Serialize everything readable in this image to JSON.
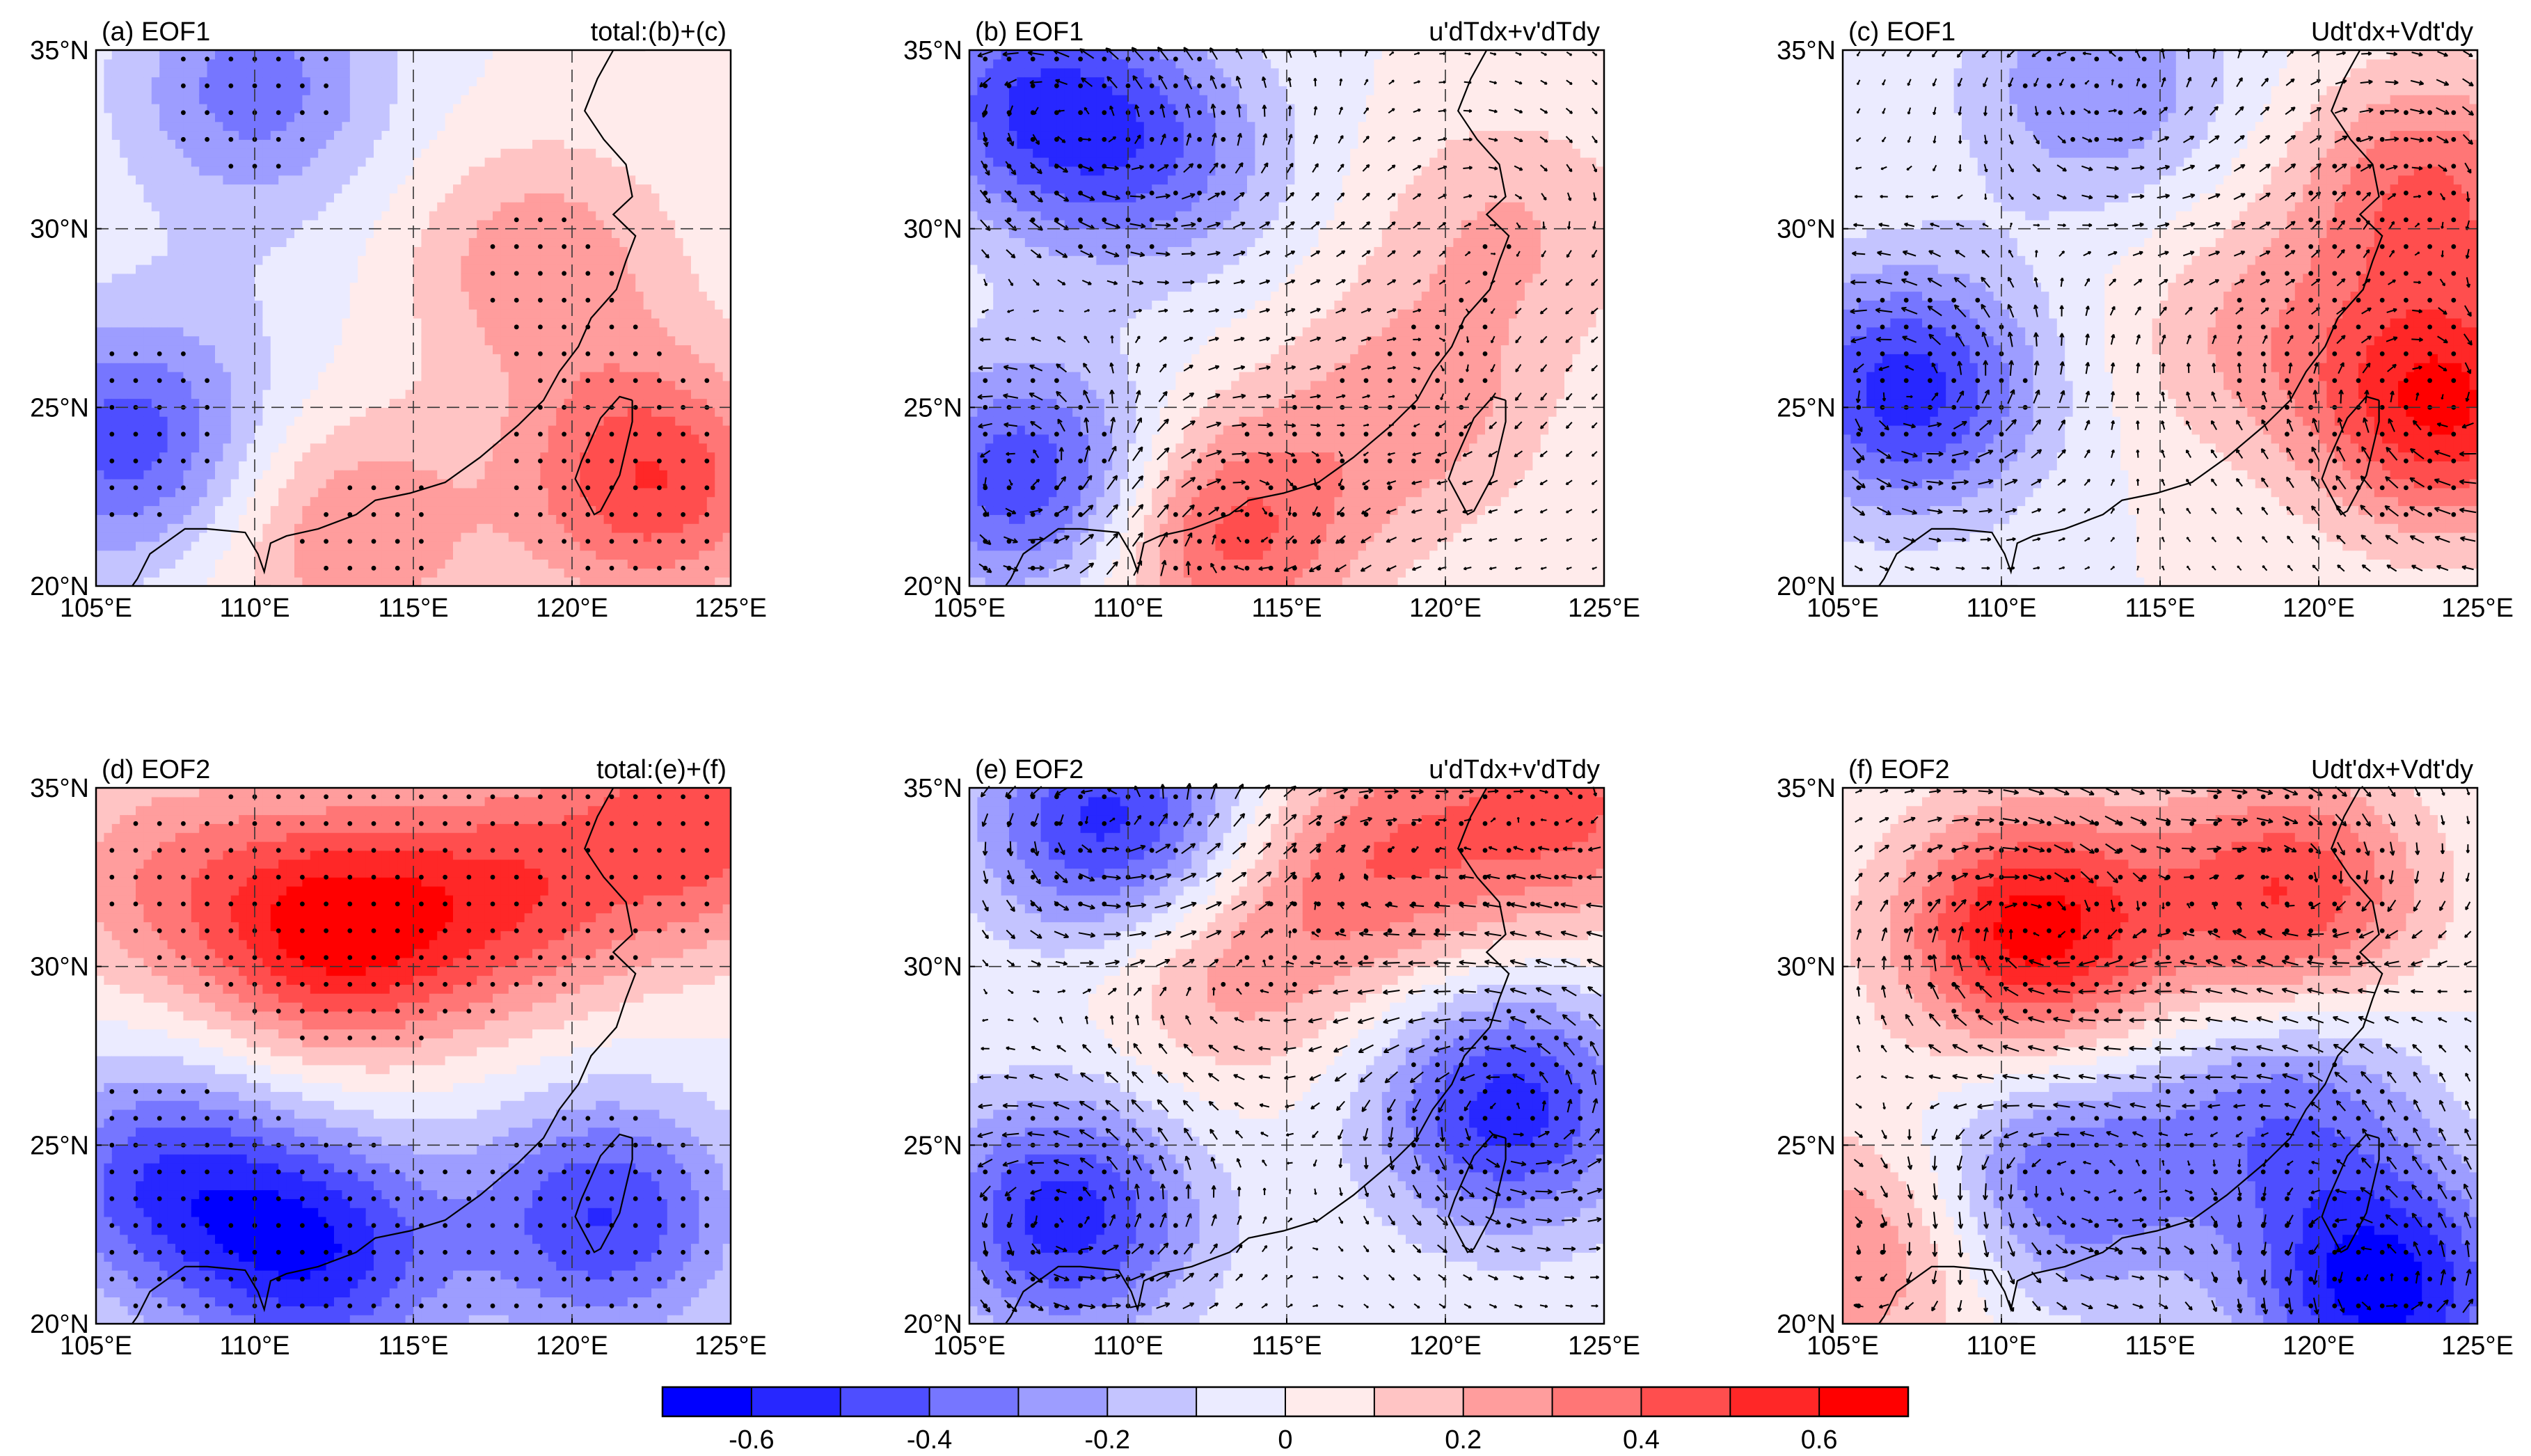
{
  "chart_data": [
    {
      "id": "a",
      "type": "heatmap",
      "label": "(a) EOF1",
      "title": "(a) EOF1",
      "subtitle": "total:(b)+(c)",
      "mode": "EOF1",
      "term": "total",
      "vectors": false,
      "stippling": true,
      "xlim": [
        105,
        125
      ],
      "ylim": [
        20,
        35
      ],
      "xticks": [
        105,
        110,
        115,
        120,
        125
      ],
      "yticks": [
        20,
        25,
        30,
        35
      ],
      "field_centers": [
        {
          "lon": 106,
          "lat": 24,
          "value": -0.45
        },
        {
          "lon": 110,
          "lat": 34,
          "value": -0.35
        },
        {
          "lon": 122.5,
          "lat": 23,
          "value": 0.5
        },
        {
          "lon": 119,
          "lat": 29,
          "value": 0.28
        },
        {
          "lon": 113,
          "lat": 21.5,
          "value": 0.3
        },
        {
          "lon": 109.5,
          "lat": 28,
          "value": -0.05
        }
      ]
    },
    {
      "id": "b",
      "type": "heatmap",
      "label": "(b) EOF1",
      "title": "(b) EOF1",
      "subtitle": "u'dTdx+v'dTdy",
      "mode": "EOF1",
      "term": "u'dTdx+v'dTdy",
      "vectors": true,
      "stippling": true,
      "xlim": [
        105,
        125
      ],
      "ylim": [
        20,
        35
      ],
      "xticks": [
        105,
        110,
        115,
        120,
        125
      ],
      "yticks": [
        20,
        25,
        30,
        35
      ],
      "field_centers": [
        {
          "lon": 107,
          "lat": 23,
          "value": -0.5
        },
        {
          "lon": 107,
          "lat": 33.5,
          "value": -0.45
        },
        {
          "lon": 111,
          "lat": 32,
          "value": -0.3
        },
        {
          "lon": 113,
          "lat": 21.5,
          "value": 0.45
        },
        {
          "lon": 119,
          "lat": 25,
          "value": 0.25
        },
        {
          "lon": 122,
          "lat": 30,
          "value": 0.2
        }
      ]
    },
    {
      "id": "c",
      "type": "heatmap",
      "label": "(c) EOF1",
      "title": "(c) EOF1",
      "subtitle": "Udt'dx+Vdt'dy",
      "mode": "EOF1",
      "term": "Udt'dx+Vdt'dy",
      "vectors": true,
      "stippling": true,
      "xlim": [
        105,
        125
      ],
      "ylim": [
        20,
        35
      ],
      "xticks": [
        105,
        110,
        115,
        120,
        125
      ],
      "yticks": [
        20,
        25,
        30,
        35
      ],
      "field_centers": [
        {
          "lon": 107,
          "lat": 25.5,
          "value": -0.55
        },
        {
          "lon": 113,
          "lat": 34,
          "value": -0.3
        },
        {
          "lon": 124,
          "lat": 25,
          "value": 0.6
        },
        {
          "lon": 123.5,
          "lat": 31,
          "value": 0.4
        },
        {
          "lon": 118,
          "lat": 27,
          "value": 0.2
        }
      ]
    },
    {
      "id": "d",
      "type": "heatmap",
      "label": "(d) EOF2",
      "title": "(d) EOF2",
      "subtitle": "total:(e)+(f)",
      "mode": "EOF2",
      "term": "total",
      "vectors": false,
      "stippling": true,
      "xlim": [
        105,
        125
      ],
      "ylim": [
        20,
        35
      ],
      "xticks": [
        105,
        110,
        115,
        120,
        125
      ],
      "yticks": [
        20,
        25,
        30,
        35
      ],
      "field_centers": [
        {
          "lon": 112.5,
          "lat": 31,
          "value": 0.6
        },
        {
          "lon": 124,
          "lat": 34,
          "value": 0.45
        },
        {
          "lon": 118,
          "lat": 32,
          "value": 0.4
        },
        {
          "lon": 107,
          "lat": 32.5,
          "value": 0.25
        },
        {
          "lon": 112,
          "lat": 22,
          "value": -0.55
        },
        {
          "lon": 121,
          "lat": 23,
          "value": -0.5
        },
        {
          "lon": 107,
          "lat": 24,
          "value": -0.45
        }
      ]
    },
    {
      "id": "e",
      "type": "heatmap",
      "label": "(e) EOF2",
      "title": "(e) EOF2",
      "subtitle": "u'dTdx+v'dTdy",
      "mode": "EOF2",
      "term": "u'dTdx+v'dTdy",
      "vectors": true,
      "stippling": true,
      "xlim": [
        105,
        125
      ],
      "ylim": [
        20,
        35
      ],
      "xticks": [
        105,
        110,
        115,
        120,
        125
      ],
      "yticks": [
        20,
        25,
        30,
        35
      ],
      "field_centers": [
        {
          "lon": 109.5,
          "lat": 34,
          "value": -0.55
        },
        {
          "lon": 108,
          "lat": 23,
          "value": -0.55
        },
        {
          "lon": 122,
          "lat": 26,
          "value": -0.55
        },
        {
          "lon": 118,
          "lat": 33,
          "value": 0.35
        },
        {
          "lon": 124,
          "lat": 34.5,
          "value": 0.4
        },
        {
          "lon": 113,
          "lat": 30,
          "value": 0.25
        }
      ]
    },
    {
      "id": "f",
      "type": "heatmap",
      "label": "(f) EOF2",
      "title": "(f) EOF2",
      "subtitle": "Udt'dx+Vdt'dy",
      "mode": "EOF2",
      "term": "Udt'dx+Vdt'dy",
      "vectors": true,
      "stippling": true,
      "xlim": [
        105,
        125
      ],
      "ylim": [
        20,
        35
      ],
      "xticks": [
        105,
        110,
        115,
        120,
        125
      ],
      "yticks": [
        20,
        25,
        30,
        35
      ],
      "field_centers": [
        {
          "lon": 111,
          "lat": 31,
          "value": 0.65
        },
        {
          "lon": 119,
          "lat": 32,
          "value": 0.5
        },
        {
          "lon": 105.5,
          "lat": 22,
          "value": 0.3
        },
        {
          "lon": 122,
          "lat": 21,
          "value": -0.65
        },
        {
          "lon": 112,
          "lat": 24,
          "value": -0.4
        },
        {
          "lon": 119,
          "lat": 26,
          "value": -0.35
        }
      ]
    }
  ],
  "axis_labels": {
    "x": [
      "105°E",
      "110°E",
      "115°E",
      "120°E",
      "125°E"
    ],
    "y": [
      "20°N",
      "25°N",
      "30°N",
      "35°N"
    ]
  },
  "colorbar": {
    "levels": [
      -0.7,
      -0.6,
      -0.5,
      -0.4,
      -0.3,
      -0.2,
      -0.1,
      0,
      0.1,
      0.2,
      0.3,
      0.4,
      0.5,
      0.6,
      0.7
    ],
    "tick_labels": [
      "-0.6",
      "-0.4",
      "-0.2",
      "0",
      "0.2",
      "0.4",
      "0.6"
    ],
    "colors": {
      "negative": "#0000ff",
      "neutral": "#ffffff",
      "positive": "#ff0000"
    }
  }
}
